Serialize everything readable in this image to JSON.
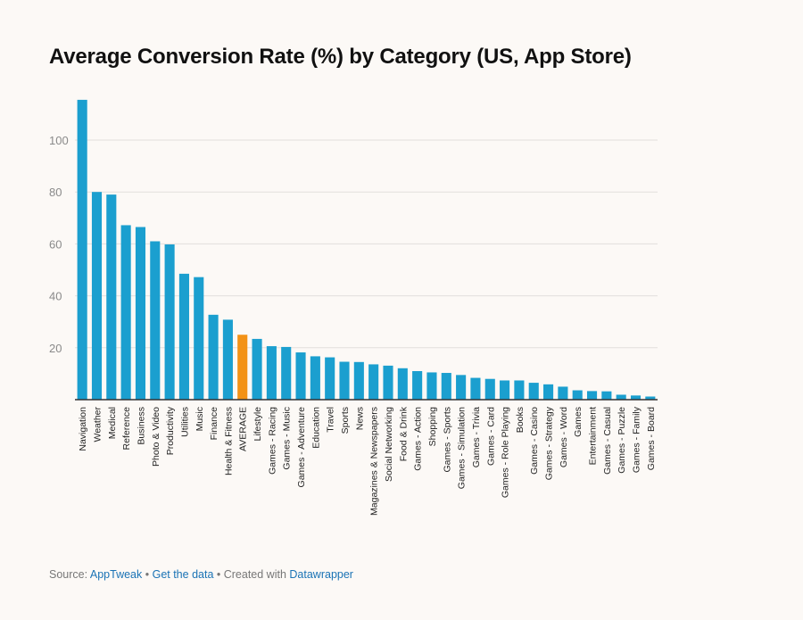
{
  "title": "Average Conversion Rate (%) by Category (US, App Store)",
  "footer": {
    "source_prefix": "Source:",
    "source_link": "AppTweak",
    "sep1": " • ",
    "data_link": "Get the data",
    "sep2": " • ",
    "created_text": "Created with",
    "created_link": "Datawrapper"
  },
  "colors": {
    "bar": "#1b9fcf",
    "highlight": "#f39216",
    "grid": "#e2dfdc",
    "axis": "#333333",
    "tick_text": "#8a8a8a",
    "link": "#1a73b5"
  },
  "chart_data": {
    "type": "bar",
    "ylim": [
      0,
      115
    ],
    "yticks": [
      20,
      40,
      60,
      80,
      100
    ],
    "grid": true,
    "highlight_category": "AVERAGE",
    "categories": [
      "Navigation",
      "Weather",
      "Medical",
      "Reference",
      "Business",
      "Photo & Video",
      "Productivity",
      "Utilities",
      "Music",
      "Finance",
      "Health & Fitness",
      "AVERAGE",
      "Lifestyle",
      "Games - Racing",
      "Games - Music",
      "Games - Adventure",
      "Education",
      "Travel",
      "Sports",
      "News",
      "Magazines & Newspapers",
      "Social Networking",
      "Food & Drink",
      "Games - Action",
      "Shopping",
      "Games - Sports",
      "Games - Simulation",
      "Games - Trivia",
      "Games - Card",
      "Games - Role Playing",
      "Books",
      "Games - Casino",
      "Games - Strategy",
      "Games - Word",
      "Games",
      "Entertainment",
      "Games - Casual",
      "Games - Puzzle",
      "Games - Family",
      "Games - Board"
    ],
    "values": [
      115.5,
      80,
      79,
      67.2,
      66.5,
      61,
      59.8,
      48.5,
      47.2,
      32.7,
      30.8,
      25,
      23.4,
      20.6,
      20.3,
      18.2,
      16.7,
      16.3,
      14.6,
      14.5,
      13.6,
      13.1,
      12.1,
      11,
      10.5,
      10.3,
      9.5,
      8.4,
      8,
      7.4,
      7.4,
      6.5,
      5.9,
      5,
      3.6,
      3.3,
      3.2,
      1.9,
      1.6,
      1.2
    ]
  }
}
